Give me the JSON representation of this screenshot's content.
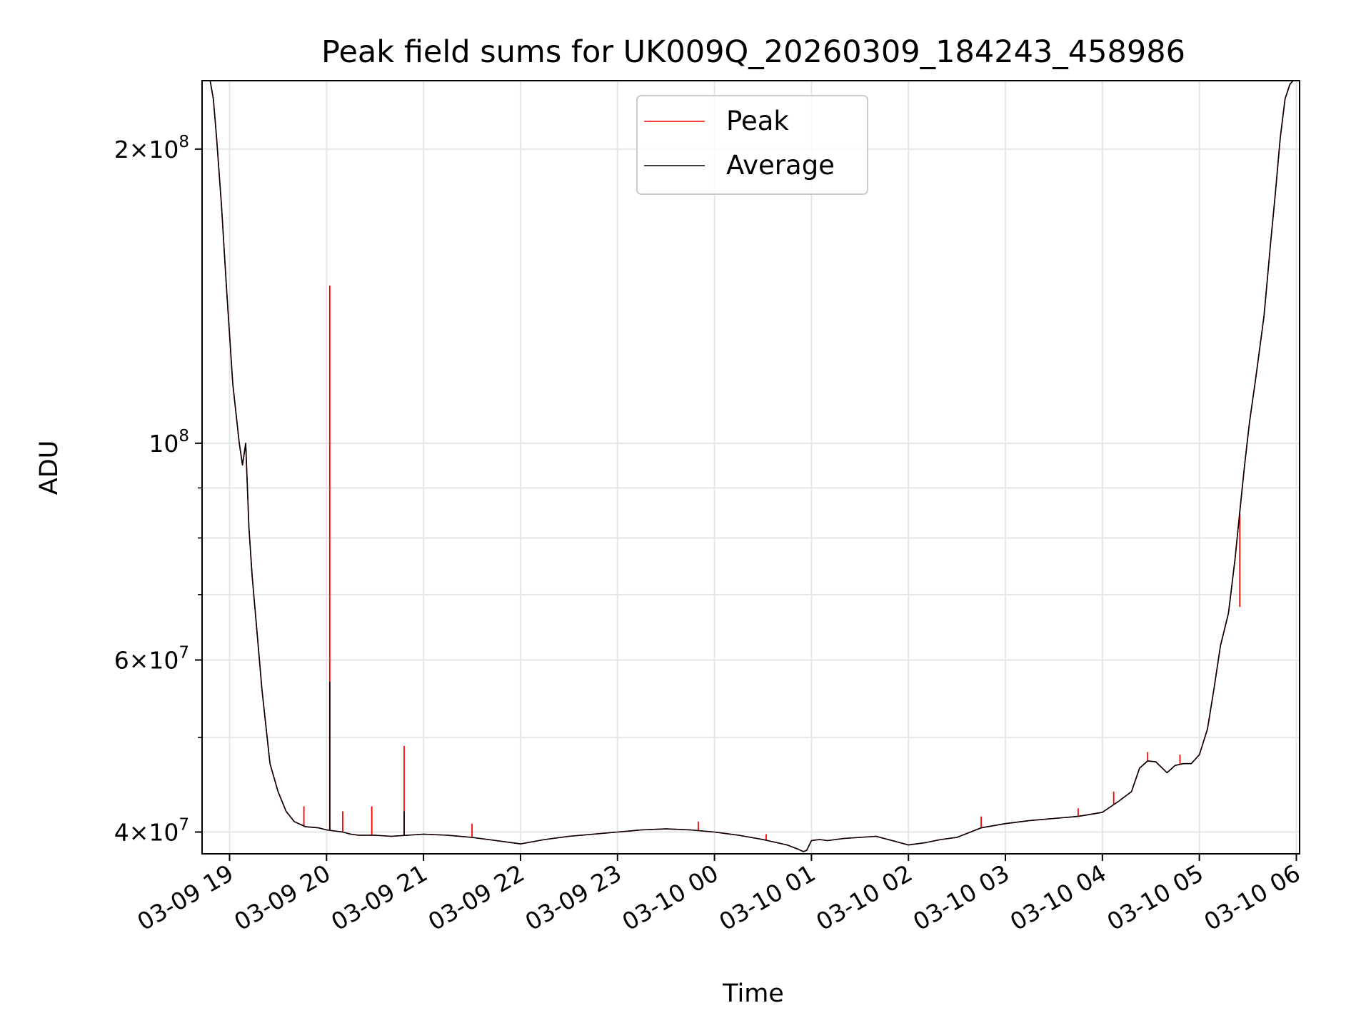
{
  "chart_data": {
    "type": "line",
    "title": "Peak field sums for UK009Q_20260309_184243_458986",
    "xlabel": "Time",
    "ylabel": "ADU",
    "yscale": "log",
    "xlim": [
      "2026-03-09 18:43",
      "2026-03-10 06:02"
    ],
    "ylim": [
      38000000,
      235000000
    ],
    "grid": true,
    "legend_placement": "upper center",
    "x_ticks": [
      {
        "label": "03-09 19",
        "value": "2026-03-09 19:00"
      },
      {
        "label": "03-09 20",
        "value": "2026-03-09 20:00"
      },
      {
        "label": "03-09 21",
        "value": "2026-03-09 21:00"
      },
      {
        "label": "03-09 22",
        "value": "2026-03-09 22:00"
      },
      {
        "label": "03-09 23",
        "value": "2026-03-09 23:00"
      },
      {
        "label": "03-10 00",
        "value": "2026-03-10 00:00"
      },
      {
        "label": "03-10 01",
        "value": "2026-03-10 01:00"
      },
      {
        "label": "03-10 02",
        "value": "2026-03-10 02:00"
      },
      {
        "label": "03-10 03",
        "value": "2026-03-10 03:00"
      },
      {
        "label": "03-10 04",
        "value": "2026-03-10 04:00"
      },
      {
        "label": "03-10 05",
        "value": "2026-03-10 05:00"
      },
      {
        "label": "03-10 06",
        "value": "2026-03-10 06:00"
      }
    ],
    "y_ticks_major": [
      {
        "mantissa": "2",
        "exp": "8",
        "value": 200000000
      },
      {
        "mantissa": "",
        "exp": "8",
        "value": 100000000
      },
      {
        "mantissa": "6",
        "exp": "7",
        "value": 60000000
      },
      {
        "mantissa": "4",
        "exp": "7",
        "value": 40000000
      }
    ],
    "y_ticks_minor": [
      90000000,
      80000000,
      70000000,
      50000000
    ],
    "x": [
      "2026-03-09 18:43",
      "2026-03-09 18:45",
      "2026-03-09 18:48",
      "2026-03-09 18:50",
      "2026-03-09 18:52",
      "2026-03-09 18:55",
      "2026-03-09 18:58",
      "2026-03-09 19:02",
      "2026-03-09 19:06",
      "2026-03-09 19:08",
      "2026-03-09 19:10",
      "2026-03-09 19:12",
      "2026-03-09 19:14",
      "2026-03-09 19:17",
      "2026-03-09 19:20",
      "2026-03-09 19:25",
      "2026-03-09 19:30",
      "2026-03-09 19:35",
      "2026-03-09 19:40",
      "2026-03-09 19:47",
      "2026-03-09 19:55",
      "2026-03-09 20:00",
      "2026-03-09 20:05",
      "2026-03-09 20:10",
      "2026-03-09 20:15",
      "2026-03-09 20:20",
      "2026-03-09 20:30",
      "2026-03-09 20:40",
      "2026-03-09 20:50",
      "2026-03-09 21:00",
      "2026-03-09 21:15",
      "2026-03-09 21:30",
      "2026-03-09 21:45",
      "2026-03-09 22:00",
      "2026-03-09 22:15",
      "2026-03-09 22:30",
      "2026-03-09 22:45",
      "2026-03-09 23:00",
      "2026-03-09 23:15",
      "2026-03-09 23:30",
      "2026-03-09 23:45",
      "2026-03-10 00:00",
      "2026-03-10 00:15",
      "2026-03-10 00:30",
      "2026-03-10 00:45",
      "2026-03-10 00:52",
      "2026-03-10 00:55",
      "2026-03-10 00:57",
      "2026-03-10 01:00",
      "2026-03-10 01:05",
      "2026-03-10 01:10",
      "2026-03-10 01:20",
      "2026-03-10 01:30",
      "2026-03-10 01:40",
      "2026-03-10 01:50",
      "2026-03-10 02:00",
      "2026-03-10 02:10",
      "2026-03-10 02:20",
      "2026-03-10 02:30",
      "2026-03-10 02:45",
      "2026-03-10 03:00",
      "2026-03-10 03:15",
      "2026-03-10 03:30",
      "2026-03-10 03:45",
      "2026-03-10 04:00",
      "2026-03-10 04:10",
      "2026-03-10 04:18",
      "2026-03-10 04:23",
      "2026-03-10 04:28",
      "2026-03-10 04:33",
      "2026-03-10 04:40",
      "2026-03-10 04:45",
      "2026-03-10 04:50",
      "2026-03-10 04:55",
      "2026-03-10 05:00",
      "2026-03-10 05:05",
      "2026-03-10 05:09",
      "2026-03-10 05:13",
      "2026-03-10 05:18",
      "2026-03-10 05:22",
      "2026-03-10 05:25",
      "2026-03-10 05:28",
      "2026-03-10 05:31",
      "2026-03-10 05:35",
      "2026-03-10 05:40",
      "2026-03-10 05:44",
      "2026-03-10 05:47",
      "2026-03-10 05:50",
      "2026-03-10 05:53",
      "2026-03-10 05:56",
      "2026-03-10 05:58",
      "2026-03-10 06:00",
      "2026-03-10 06:02"
    ],
    "series": [
      {
        "name": "Peak",
        "color": "#ff0000",
        "values": [
          235000000,
          235000000,
          235000000,
          225000000,
          205000000,
          175000000,
          145000000,
          115000000,
          100000000,
          95000000,
          100000000,
          82000000,
          73000000,
          64000000,
          56000000,
          47000000,
          44000000,
          42000000,
          41000000,
          40500000,
          40400000,
          40200000,
          40100000,
          40000000,
          39800000,
          39700000,
          39700000,
          39600000,
          39700000,
          39800000,
          39700000,
          39500000,
          39200000,
          38900000,
          39300000,
          39600000,
          39800000,
          40000000,
          40200000,
          40300000,
          40200000,
          40000000,
          39700000,
          39300000,
          38800000,
          38400000,
          38200000,
          38300000,
          39200000,
          39300000,
          39200000,
          39400000,
          39500000,
          39600000,
          39200000,
          38800000,
          39000000,
          39300000,
          39500000,
          40400000,
          40800000,
          41100000,
          41300000,
          41500000,
          41900000,
          43000000,
          44000000,
          46500000,
          47300000,
          47200000,
          46000000,
          46800000,
          47000000,
          47000000,
          48000000,
          51000000,
          56000000,
          62000000,
          67000000,
          76000000,
          85000000,
          95000000,
          105000000,
          117000000,
          135000000,
          160000000,
          180000000,
          205000000,
          225000000,
          233000000,
          235000000,
          235000000,
          235000000
        ]
      },
      {
        "name": "Average",
        "color": "#000000",
        "values": [
          235000000,
          235000000,
          235000000,
          225000000,
          205000000,
          175000000,
          145000000,
          115000000,
          100000000,
          95000000,
          100000000,
          82000000,
          73000000,
          64000000,
          56000000,
          47000000,
          44000000,
          42000000,
          41000000,
          40500000,
          40400000,
          40200000,
          40100000,
          40000000,
          39800000,
          39700000,
          39700000,
          39600000,
          39700000,
          39800000,
          39700000,
          39500000,
          39200000,
          38900000,
          39300000,
          39600000,
          39800000,
          40000000,
          40200000,
          40300000,
          40200000,
          40000000,
          39700000,
          39300000,
          38800000,
          38400000,
          38200000,
          38300000,
          39200000,
          39300000,
          39200000,
          39400000,
          39500000,
          39600000,
          39200000,
          38800000,
          39000000,
          39300000,
          39500000,
          40400000,
          40800000,
          41100000,
          41300000,
          41500000,
          41900000,
          43000000,
          44000000,
          46500000,
          47300000,
          47200000,
          46000000,
          46800000,
          47000000,
          47000000,
          48000000,
          51000000,
          56000000,
          62000000,
          67000000,
          76000000,
          85000000,
          95000000,
          105000000,
          117000000,
          135000000,
          160000000,
          180000000,
          205000000,
          225000000,
          233000000,
          235000000,
          235000000,
          235000000
        ]
      }
    ],
    "peak_spikes": [
      {
        "x": "2026-03-09 20:02",
        "value": 145000000
      },
      {
        "x": "2026-03-09 20:48",
        "value": 49000000
      },
      {
        "x": "2026-03-09 20:28",
        "value": 42500000
      },
      {
        "x": "2026-03-09 20:10",
        "value": 42000000
      },
      {
        "x": "2026-03-09 19:46",
        "value": 42500000
      },
      {
        "x": "2026-03-09 21:30",
        "value": 40800000
      },
      {
        "x": "2026-03-09 23:50",
        "value": 41000000
      },
      {
        "x": "2026-03-10 00:32",
        "value": 39800000
      },
      {
        "x": "2026-03-10 02:45",
        "value": 41500000
      },
      {
        "x": "2026-03-10 03:45",
        "value": 42300000
      },
      {
        "x": "2026-03-10 04:07",
        "value": 44000000
      },
      {
        "x": "2026-03-10 04:28",
        "value": 48300000
      },
      {
        "x": "2026-03-10 04:48",
        "value": 48000000
      },
      {
        "x": "2026-03-10 05:06",
        "value": 52000000
      },
      {
        "x": "2026-03-10 05:25",
        "value": 68000000
      }
    ],
    "average_spikes": [
      {
        "x": "2026-03-09 20:02",
        "value": 57000000
      },
      {
        "x": "2026-03-09 20:48",
        "value": 42000000
      }
    ]
  }
}
